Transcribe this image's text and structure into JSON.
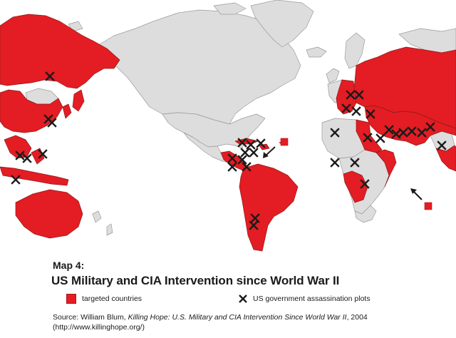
{
  "map": {
    "label": "Map 4:",
    "title": "US Military and CIA Intervention since World War II",
    "colors": {
      "targeted": "#e31d23",
      "other_land": "#dddddd",
      "border": "#9a9a9a",
      "ocean": "#ffffff",
      "marker": "#1b1b1b"
    },
    "legend": [
      {
        "symbol": "red-square",
        "label": "targeted countries"
      },
      {
        "symbol": "x-mark",
        "label": "US government assassination plots"
      }
    ],
    "source": {
      "prefix": "Source:  William Blum, ",
      "book": "Killing Hope: U.S. Military and CIA Intervention Since World War II",
      "year": ", 2004",
      "url": "(http://www.killinghope.org/)"
    }
  }
}
